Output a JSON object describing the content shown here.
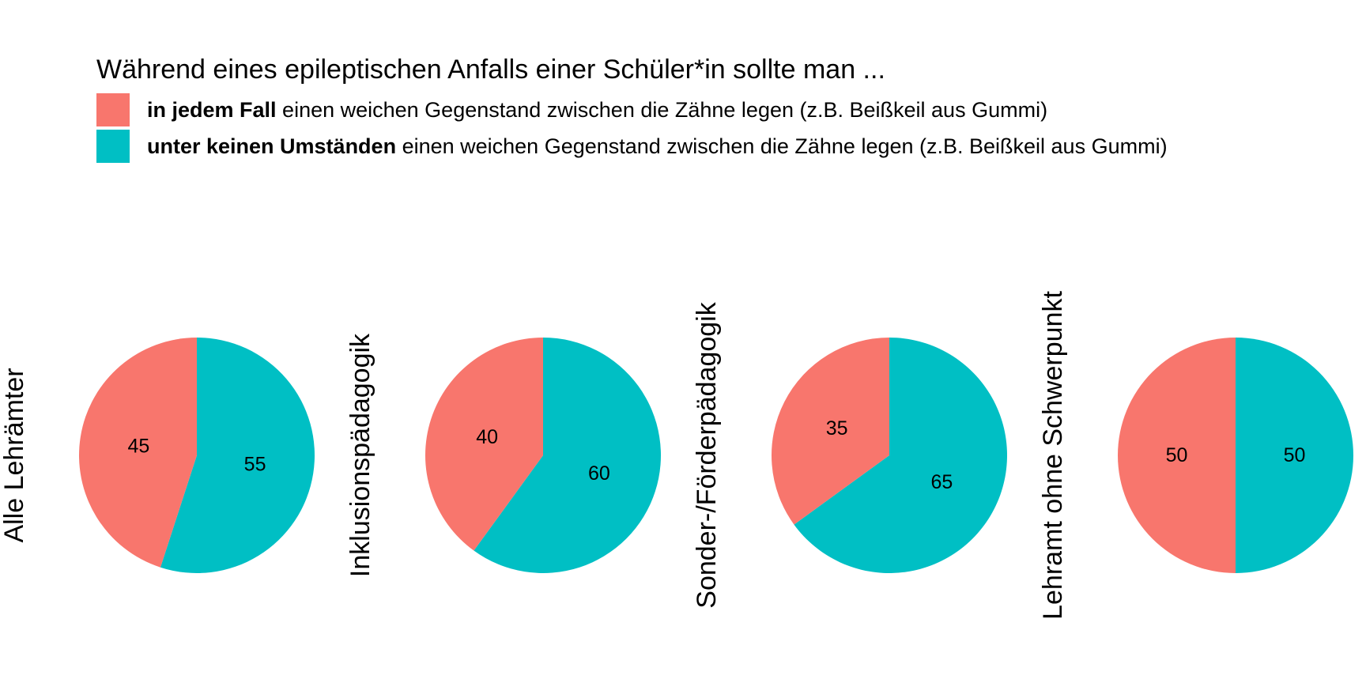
{
  "legend": {
    "title": "Während eines epileptischen Anfalls einer Schüler*in sollte man ...",
    "items": [
      {
        "bold": "in jedem Fall",
        "text": " einen weichen Gegenstand zwischen die Zähne legen (z.B. Beißkeil aus Gummi)",
        "color": "#F8766D"
      },
      {
        "bold": "unter keinen Umständen",
        "text": " einen weichen Gegenstand zwischen die Zähne legen (z.B. Beißkeil aus Gummi)",
        "color": "#00BFC4"
      }
    ]
  },
  "chart_data": {
    "type": "pie",
    "series_colors": [
      "#F8766D",
      "#00BFC4"
    ],
    "charts": [
      {
        "label": "Alle Lehrämter",
        "values": [
          45,
          55
        ]
      },
      {
        "label": "Inklusionspädagogik",
        "values": [
          40,
          60
        ]
      },
      {
        "label": "Sonder-/Förderpädagogik",
        "values": [
          35,
          65
        ]
      },
      {
        "label": "Lehramt ohne Schwerpunkt",
        "values": [
          50,
          50
        ]
      }
    ]
  }
}
